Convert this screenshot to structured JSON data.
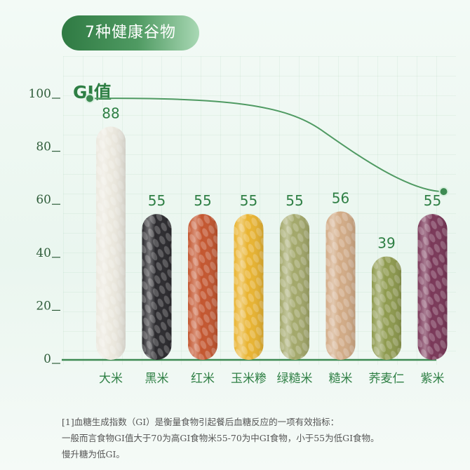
{
  "title": "7种健康谷物",
  "chart_data": {
    "type": "bar",
    "ylabel": "GI值",
    "ylim": [
      0,
      100
    ],
    "yticks": [
      "0",
      "20",
      "40",
      "60",
      "80",
      "100"
    ],
    "categories": [
      "大米",
      "黑米",
      "红米",
      "玉米糁",
      "绿糙米",
      "糙米",
      "荞麦仁",
      "紫米"
    ],
    "values": [
      88,
      55,
      55,
      55,
      55,
      56,
      39,
      55
    ],
    "value_labels": [
      "88",
      "55",
      "55",
      "55",
      "55",
      "56",
      "39",
      "55"
    ],
    "bar_colors": [
      "#ece9df",
      "#2b2a2e",
      "#c4562f",
      "#e9b431",
      "#a3a86a",
      "#d2ab86",
      "#8e9a4e",
      "#7a3758"
    ],
    "grid": true,
    "trend_line": "decreasing"
  },
  "footnote": {
    "line1": "[1]血糖生成指数（GI）是衡量食物引起餐后血糖反应的一项有效指标：",
    "line2": "一般而言食物GI值大于70为高GI食物米55-70为中GI食物，小于55为低GI食物。",
    "line3": "慢升糖为低GI。"
  }
}
